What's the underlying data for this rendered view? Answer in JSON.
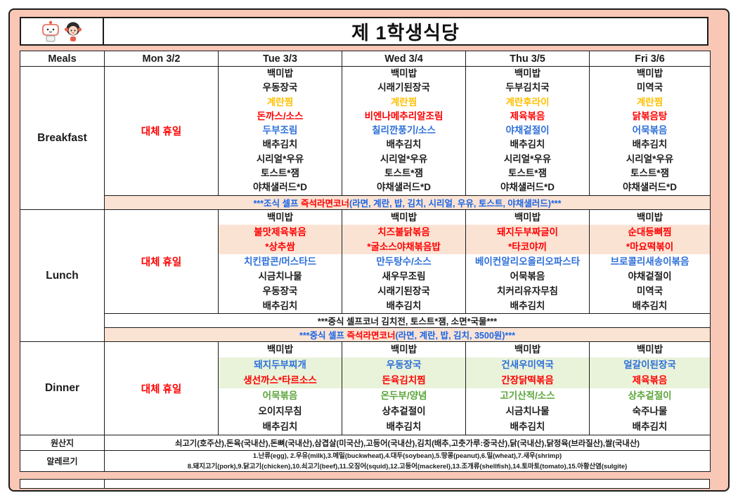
{
  "title": "제 1학생식당",
  "header": {
    "columns": [
      "Meals",
      "Mon 3/2",
      "Tue 3/3",
      "Wed 3/4",
      "Thu 3/5",
      "Fri 3/6"
    ]
  },
  "monday_notice": "대체 휴일",
  "meal_labels": {
    "breakfast": "Breakfast",
    "lunch": "Lunch",
    "dinner": "Dinner",
    "origin": "원산지",
    "allergy": "알레르기"
  },
  "colors": {
    "black": "#1c1c1c",
    "red": "#fe0000",
    "yellow": "#ffc002",
    "blue": "#2d6fd9",
    "note_blue": "#1a66e8",
    "green": "#5ca53a",
    "peach": "#fbe3d4",
    "light_green": "#e9f3da",
    "page_pink": "#f9c7b6"
  },
  "breakfast": {
    "days": [
      {
        "day": "Tue 3/3",
        "items": [
          {
            "text": "백미밥",
            "color": "black"
          },
          {
            "text": "우동장국",
            "color": "black"
          },
          {
            "text": "계란찜",
            "color": "yellow"
          },
          {
            "text": "돈까스/소스",
            "color": "red"
          },
          {
            "text": "두부조림",
            "color": "blue"
          },
          {
            "text": "배추김치",
            "color": "black"
          },
          {
            "text": "시리얼*우유",
            "color": "black"
          },
          {
            "text": "토스트*잼",
            "color": "black"
          },
          {
            "text": "야채샐러드*D",
            "color": "black"
          }
        ]
      },
      {
        "day": "Wed 3/4",
        "items": [
          {
            "text": "백미밥",
            "color": "black"
          },
          {
            "text": "시래기된장국",
            "color": "black"
          },
          {
            "text": "계란찜",
            "color": "yellow"
          },
          {
            "text": "비엔나메추리알조림",
            "color": "red"
          },
          {
            "text": "칠리깐풍기/소스",
            "color": "blue"
          },
          {
            "text": "배추김치",
            "color": "black"
          },
          {
            "text": "시리얼*우유",
            "color": "black"
          },
          {
            "text": "토스트*잼",
            "color": "black"
          },
          {
            "text": "야채샐러드*D",
            "color": "black"
          }
        ]
      },
      {
        "day": "Thu 3/5",
        "items": [
          {
            "text": "백미밥",
            "color": "black"
          },
          {
            "text": "두부김치국",
            "color": "black"
          },
          {
            "text": "계란후라이",
            "color": "yellow"
          },
          {
            "text": "제육볶음",
            "color": "red"
          },
          {
            "text": "야채겉절이",
            "color": "blue"
          },
          {
            "text": "배추김치",
            "color": "black"
          },
          {
            "text": "시리얼*우유",
            "color": "black"
          },
          {
            "text": "토스트*잼",
            "color": "black"
          },
          {
            "text": "야채샐러드*D",
            "color": "black"
          }
        ]
      },
      {
        "day": "Fri 3/6",
        "items": [
          {
            "text": "백미밥",
            "color": "black"
          },
          {
            "text": "미역국",
            "color": "black"
          },
          {
            "text": "계란찜",
            "color": "yellow"
          },
          {
            "text": "닭볶음탕",
            "color": "red"
          },
          {
            "text": "어묵볶음",
            "color": "blue"
          },
          {
            "text": "배추김치",
            "color": "black"
          },
          {
            "text": "시리얼*우유",
            "color": "black"
          },
          {
            "text": "토스트*잼",
            "color": "black"
          },
          {
            "text": "야채샐러드*D",
            "color": "black"
          }
        ]
      }
    ],
    "note_parts": [
      {
        "text": "***조식 셀프 ",
        "color": "note_blue"
      },
      {
        "text": "즉석라면코너",
        "color": "red"
      },
      {
        "text": "(라면, 계란, 밥, 김치, 시리얼, 우유, 토스트, 야채샐러드)***",
        "color": "note_blue"
      }
    ]
  },
  "lunch": {
    "days": [
      {
        "day": "Tue 3/3",
        "items": [
          {
            "text": "백미밥",
            "color": "black"
          },
          {
            "text": "불맛제육볶음",
            "color": "red",
            "highlight": "peach"
          },
          {
            "text": "*상추쌈",
            "color": "red",
            "highlight": "peach"
          },
          {
            "text": "치킨팝콘/머스타드",
            "color": "blue"
          },
          {
            "text": "시금치나물",
            "color": "black"
          },
          {
            "text": "우동장국",
            "color": "black"
          },
          {
            "text": "배추김치",
            "color": "black"
          }
        ]
      },
      {
        "day": "Wed 3/4",
        "items": [
          {
            "text": "백미밥",
            "color": "black"
          },
          {
            "text": "치즈불닭볶음",
            "color": "red",
            "highlight": "peach"
          },
          {
            "text": "*굴소스야채볶음밥",
            "color": "red",
            "highlight": "peach"
          },
          {
            "text": "만두탕수/소스",
            "color": "blue"
          },
          {
            "text": "새우무조림",
            "color": "black"
          },
          {
            "text": "시래기된장국",
            "color": "black"
          },
          {
            "text": "배추김치",
            "color": "black"
          }
        ]
      },
      {
        "day": "Thu 3/5",
        "items": [
          {
            "text": "백미밥",
            "color": "black"
          },
          {
            "text": "돼지두부짜글이",
            "color": "red",
            "highlight": "peach"
          },
          {
            "text": "*타코야끼",
            "color": "red",
            "highlight": "peach"
          },
          {
            "text": "베이컨알리오올리오파스타",
            "color": "blue"
          },
          {
            "text": "어묵볶음",
            "color": "black"
          },
          {
            "text": "치커리유자무침",
            "color": "black"
          },
          {
            "text": "배추김치",
            "color": "black"
          }
        ]
      },
      {
        "day": "Fri 3/6",
        "items": [
          {
            "text": "백미밥",
            "color": "black"
          },
          {
            "text": "순대등뼈찜",
            "color": "red",
            "highlight": "peach"
          },
          {
            "text": "*마요떡볶이",
            "color": "red",
            "highlight": "peach"
          },
          {
            "text": "브로콜리새송이볶음",
            "color": "blue"
          },
          {
            "text": "야채겉절이",
            "color": "black"
          },
          {
            "text": "미역국",
            "color": "black"
          },
          {
            "text": "배추김치",
            "color": "black"
          }
        ]
      }
    ],
    "self_corner_note": "***중식 셀프코너 김치전, 토스트*잼, 소면*국물***",
    "ramen_note_parts": [
      {
        "text": "***중식 셀프 ",
        "color": "note_blue"
      },
      {
        "text": "즉석라면코너",
        "color": "red"
      },
      {
        "text": "(라면, 계란, 밥, 김치, 3500원)***",
        "color": "note_blue"
      }
    ]
  },
  "dinner": {
    "days": [
      {
        "day": "Tue 3/3",
        "items": [
          {
            "text": "백미밥",
            "color": "black"
          },
          {
            "text": "돼지두부찌개",
            "color": "blue",
            "highlight": "light_green"
          },
          {
            "text": "생선까스*타르소스",
            "color": "red",
            "highlight": "light_green"
          },
          {
            "text": "어묵볶음",
            "color": "green"
          },
          {
            "text": "오이지무침",
            "color": "black"
          },
          {
            "text": "배추김치",
            "color": "black"
          }
        ]
      },
      {
        "day": "Wed 3/4",
        "items": [
          {
            "text": "백미밥",
            "color": "black"
          },
          {
            "text": "우동장국",
            "color": "blue",
            "highlight": "light_green"
          },
          {
            "text": "돈육김치찜",
            "color": "red",
            "highlight": "light_green"
          },
          {
            "text": "온두부/양념",
            "color": "green"
          },
          {
            "text": "상추겉절이",
            "color": "black"
          },
          {
            "text": "배추김치",
            "color": "black"
          }
        ]
      },
      {
        "day": "Thu 3/5",
        "items": [
          {
            "text": "백미밥",
            "color": "black"
          },
          {
            "text": "건새우미역국",
            "color": "blue",
            "highlight": "light_green"
          },
          {
            "text": "간장닭떡볶음",
            "color": "red",
            "highlight": "light_green"
          },
          {
            "text": "고기산적/소스",
            "color": "green"
          },
          {
            "text": "시금치나물",
            "color": "black"
          },
          {
            "text": "배추김치",
            "color": "black"
          }
        ]
      },
      {
        "day": "Fri 3/6",
        "items": [
          {
            "text": "백미밥",
            "color": "black"
          },
          {
            "text": "얼갈이된장국",
            "color": "blue",
            "highlight": "light_green"
          },
          {
            "text": "제육볶음",
            "color": "red",
            "highlight": "light_green"
          },
          {
            "text": "상추겉절이",
            "color": "green"
          },
          {
            "text": "숙주나물",
            "color": "black"
          },
          {
            "text": "배추김치",
            "color": "black"
          }
        ]
      }
    ]
  },
  "origin": {
    "text": "쇠고기(호주산),돈육(국내산),돈뼈(국내산),삼겹살(미국산),고등어(국내산),김치(배추,고춧가루:중국산),닭(국내산),닭정육(브라질산),쌀(국내산)"
  },
  "allergy": {
    "lines": [
      "1.난류(egg), 2.우유(milk),3.메밀(buckwheat),4.대두(soybean),5.땅콩(peanut),6.밀(wheat),7.새우(shrimp)",
      "8.돼지고기(pork),9.닭고기(chicken),10.쇠고기(beef),11.오징어(squid),12.고등어(mackerel),13.조개류(shellfish),14.토마토(tomato),15.아황산염(sulgite)"
    ]
  }
}
